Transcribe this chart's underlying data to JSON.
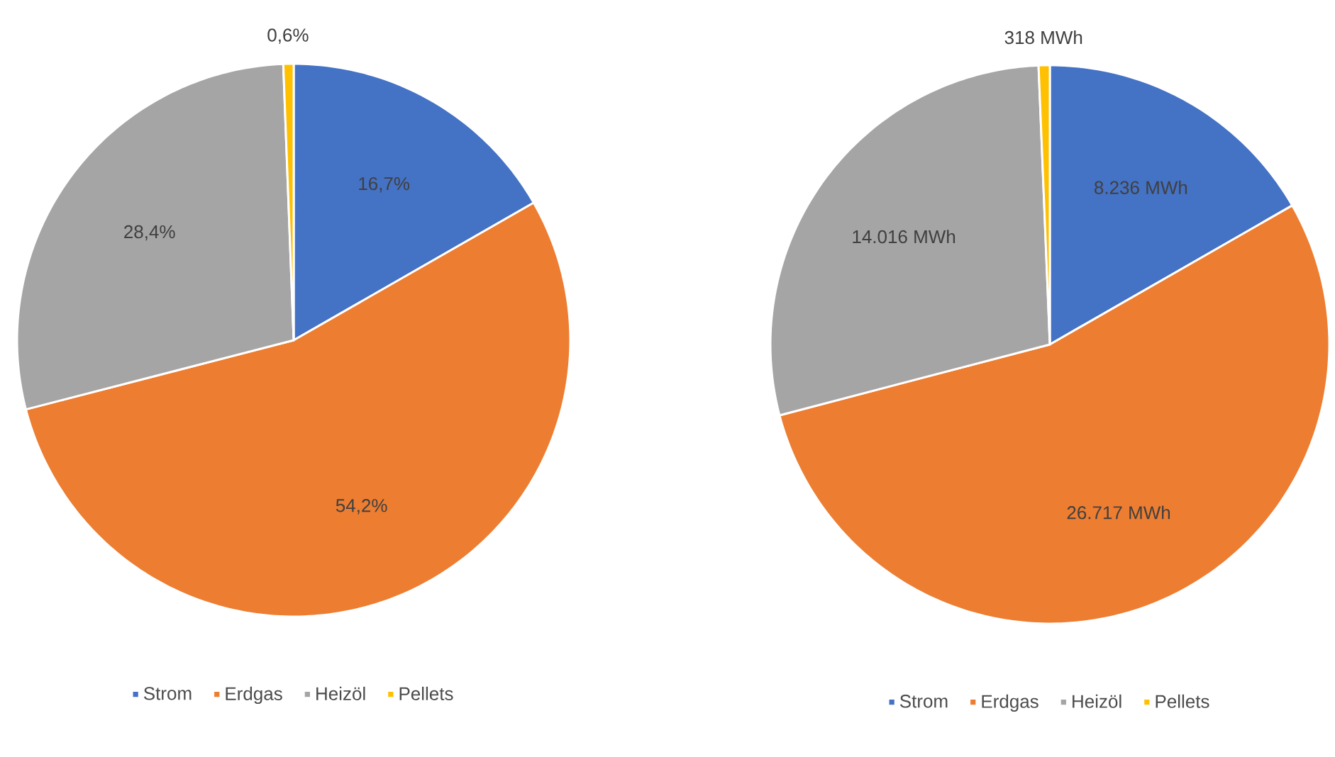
{
  "chart_data": [
    {
      "type": "pie",
      "categories": [
        "Strom",
        "Erdgas",
        "Heizöl",
        "Pellets"
      ],
      "values": [
        16.7,
        54.2,
        28.4,
        0.6
      ],
      "colors": [
        "#4472c4",
        "#ed7d31",
        "#a5a5a5",
        "#ffc000"
      ],
      "value_labels": [
        "16,7%",
        "54,2%",
        "28,4%",
        "0,6%"
      ],
      "legend": "bottom"
    },
    {
      "type": "pie",
      "categories": [
        "Strom",
        "Erdgas",
        "Heizöl",
        "Pellets"
      ],
      "values": [
        8236,
        26717,
        14016,
        318
      ],
      "colors": [
        "#4472c4",
        "#ed7d31",
        "#a5a5a5",
        "#ffc000"
      ],
      "value_labels": [
        "8.236 MWh",
        "26.717 MWh",
        "14.016 MWh",
        "318 MWh"
      ],
      "legend": "bottom"
    }
  ]
}
